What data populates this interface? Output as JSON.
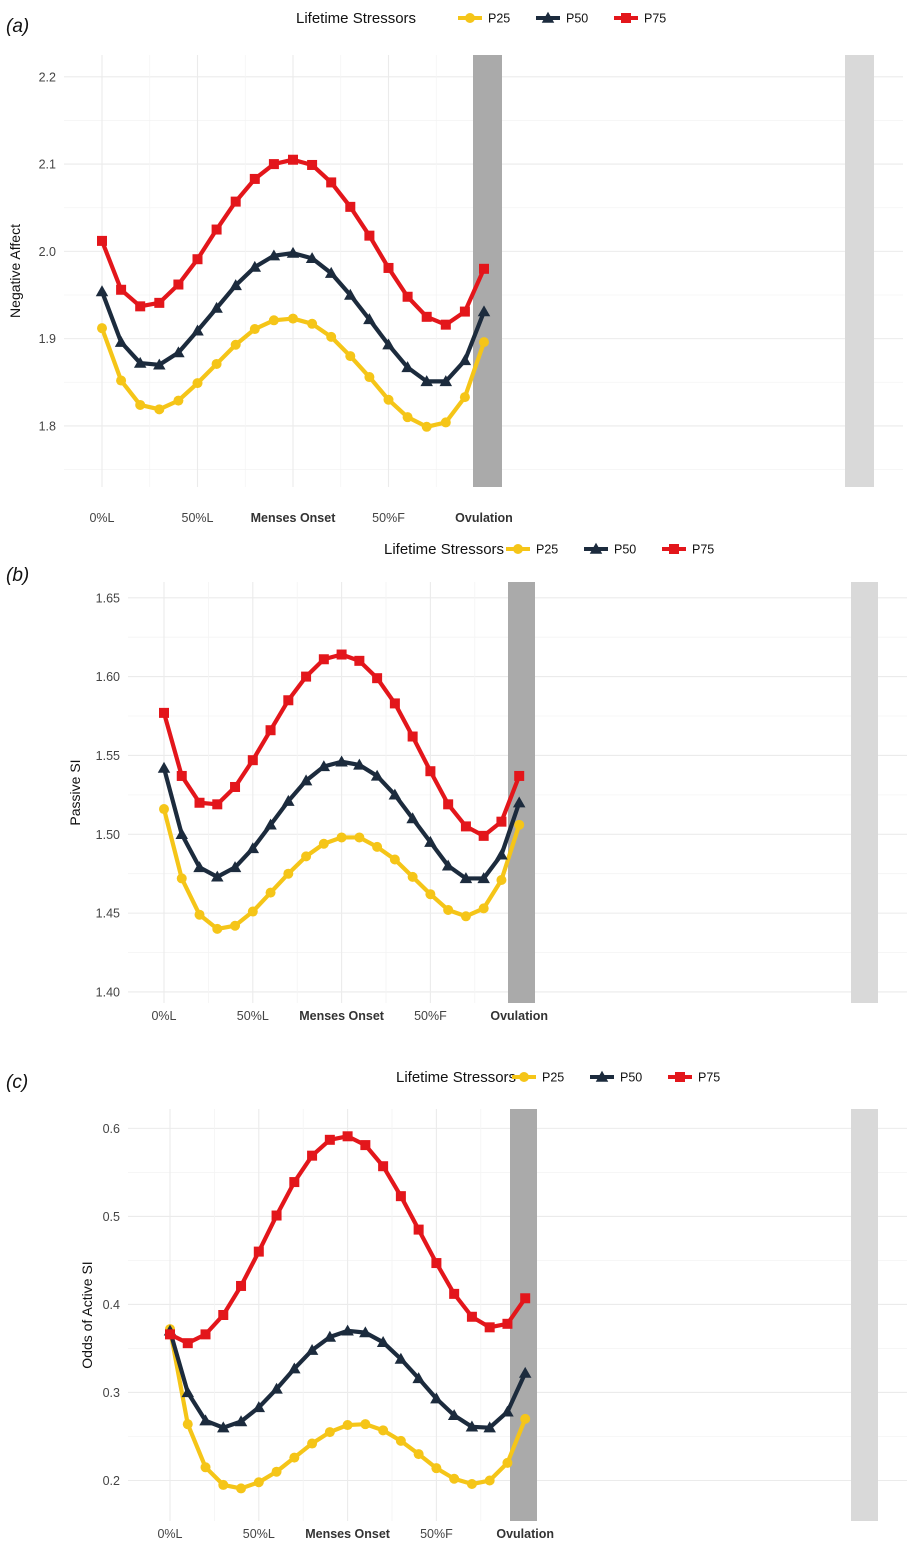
{
  "chart_data": [
    {
      "type": "line",
      "panel_label": "(a)",
      "legend_title": "Lifetime Stressors",
      "ylabel": "Negative Affect",
      "xlabel": "",
      "ylim": [
        1.73,
        2.225
      ],
      "yticks": [
        "1.8",
        "1.9",
        "2.0",
        "2.1",
        "2.2"
      ],
      "x_ticks": [
        "0%L",
        "50%L",
        "Menses Onset",
        "50%F",
        "Ovulation"
      ],
      "grid": true,
      "legend_position": "top",
      "shaded_regions": [
        {
          "label": "Menses Onset",
          "color": "#aaaaaa"
        },
        {
          "label": "Ovulation",
          "color": "#d9d9d9"
        }
      ],
      "series": [
        {
          "name": "P25",
          "color": "#f5c518",
          "marker": "circle",
          "values": [
            1.912,
            1.852,
            1.824,
            1.819,
            1.829,
            1.849,
            1.871,
            1.893,
            1.911,
            1.921,
            1.923,
            1.917,
            1.902,
            1.88,
            1.856,
            1.83,
            1.81,
            1.799,
            1.804,
            1.833,
            1.896
          ]
        },
        {
          "name": "P50",
          "color": "#1c2b3d",
          "marker": "triangle",
          "values": [
            1.954,
            1.896,
            1.872,
            1.87,
            1.884,
            1.909,
            1.935,
            1.961,
            1.982,
            1.995,
            1.998,
            1.992,
            1.975,
            1.95,
            1.922,
            1.893,
            1.867,
            1.851,
            1.851,
            1.875,
            1.931
          ]
        },
        {
          "name": "P75",
          "color": "#e3161b",
          "marker": "square",
          "values": [
            2.012,
            1.956,
            1.937,
            1.941,
            1.962,
            1.991,
            2.025,
            2.057,
            2.083,
            2.1,
            2.105,
            2.099,
            2.079,
            2.051,
            2.018,
            1.981,
            1.948,
            1.925,
            1.916,
            1.931,
            1.98
          ]
        }
      ]
    },
    {
      "type": "line",
      "panel_label": "(b)",
      "legend_title": "Lifetime Stressors",
      "ylabel": "Passive SI",
      "xlabel": "",
      "ylim": [
        1.393,
        1.66
      ],
      "yticks": [
        "1.40",
        "1.45",
        "1.50",
        "1.55",
        "1.60",
        "1.65"
      ],
      "x_ticks": [
        "0%L",
        "50%L",
        "Menses Onset",
        "50%F",
        "Ovulation"
      ],
      "grid": true,
      "legend_position": "top",
      "shaded_regions": [
        {
          "label": "Menses Onset",
          "color": "#aaaaaa"
        },
        {
          "label": "Ovulation",
          "color": "#d9d9d9"
        }
      ],
      "series": [
        {
          "name": "P25",
          "color": "#f5c518",
          "marker": "circle",
          "values": [
            1.516,
            1.472,
            1.449,
            1.44,
            1.442,
            1.451,
            1.463,
            1.475,
            1.486,
            1.494,
            1.498,
            1.498,
            1.492,
            1.484,
            1.473,
            1.462,
            1.452,
            1.448,
            1.453,
            1.471,
            1.506
          ]
        },
        {
          "name": "P50",
          "color": "#1c2b3d",
          "marker": "triangle",
          "values": [
            1.542,
            1.5,
            1.479,
            1.473,
            1.479,
            1.491,
            1.506,
            1.521,
            1.534,
            1.543,
            1.546,
            1.544,
            1.537,
            1.525,
            1.51,
            1.495,
            1.48,
            1.472,
            1.472,
            1.487,
            1.52
          ]
        },
        {
          "name": "P75",
          "color": "#e3161b",
          "marker": "square",
          "values": [
            1.577,
            1.537,
            1.52,
            1.519,
            1.53,
            1.547,
            1.566,
            1.585,
            1.6,
            1.611,
            1.614,
            1.61,
            1.599,
            1.583,
            1.562,
            1.54,
            1.519,
            1.505,
            1.499,
            1.508,
            1.537
          ]
        }
      ]
    },
    {
      "type": "line",
      "panel_label": "(c)",
      "legend_title": "Lifetime Stressors",
      "ylabel": "Odds of Active SI",
      "xlabel": "",
      "ylim": [
        0.154,
        0.622
      ],
      "yticks": [
        "0.2",
        "0.3",
        "0.4",
        "0.5",
        "0.6"
      ],
      "x_ticks": [
        "0%L",
        "50%L",
        "Menses Onset",
        "50%F",
        "Ovulation"
      ],
      "grid": true,
      "legend_position": "top",
      "shaded_regions": [
        {
          "label": "Menses Onset",
          "color": "#aaaaaa"
        },
        {
          "label": "Ovulation",
          "color": "#d9d9d9"
        }
      ],
      "series": [
        {
          "name": "P25",
          "color": "#f5c518",
          "marker": "circle",
          "values": [
            0.372,
            0.264,
            0.215,
            0.195,
            0.191,
            0.198,
            0.21,
            0.226,
            0.242,
            0.255,
            0.263,
            0.264,
            0.257,
            0.245,
            0.23,
            0.214,
            0.202,
            0.196,
            0.2,
            0.22,
            0.27
          ]
        },
        {
          "name": "P50",
          "color": "#1c2b3d",
          "marker": "triangle",
          "values": [
            0.37,
            0.3,
            0.268,
            0.26,
            0.267,
            0.283,
            0.304,
            0.327,
            0.348,
            0.363,
            0.37,
            0.368,
            0.357,
            0.338,
            0.316,
            0.293,
            0.274,
            0.261,
            0.26,
            0.278,
            0.322
          ]
        },
        {
          "name": "P75",
          "color": "#e3161b",
          "marker": "square",
          "values": [
            0.366,
            0.356,
            0.366,
            0.388,
            0.421,
            0.46,
            0.501,
            0.539,
            0.569,
            0.587,
            0.591,
            0.581,
            0.557,
            0.523,
            0.485,
            0.447,
            0.412,
            0.386,
            0.374,
            0.378,
            0.407
          ]
        }
      ]
    }
  ]
}
